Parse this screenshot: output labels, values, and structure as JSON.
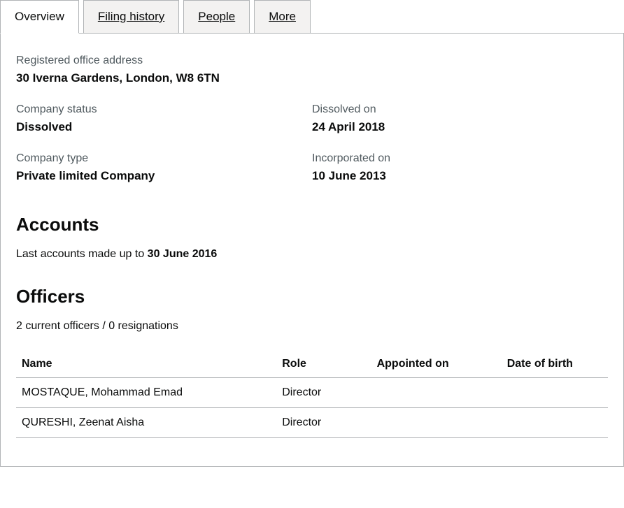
{
  "tabs": {
    "overview": "Overview",
    "filing_history": "Filing history",
    "people": "People",
    "more": "More"
  },
  "overview": {
    "address_label": "Registered office address",
    "address_value": "30 Iverna Gardens, London, W8 6TN",
    "status_label": "Company status",
    "status_value": "Dissolved",
    "dissolved_label": "Dissolved on",
    "dissolved_value": "24 April 2018",
    "type_label": "Company type",
    "type_value": "Private limited Company",
    "incorporated_label": "Incorporated on",
    "incorporated_value": "10 June 2013"
  },
  "accounts": {
    "heading": "Accounts",
    "last_prefix": "Last accounts made up to ",
    "last_date": "30 June 2016"
  },
  "officers": {
    "heading": "Officers",
    "summary": "2 current officers / 0 resignations",
    "columns": {
      "name": "Name",
      "role": "Role",
      "appointed": "Appointed on",
      "dob": "Date of birth"
    },
    "rows": [
      {
        "name": "MOSTAQUE, Mohammad Emad",
        "role": "Director",
        "appointed": "",
        "dob": ""
      },
      {
        "name": "QURESHI, Zeenat Aisha",
        "role": "Director",
        "appointed": "",
        "dob": ""
      }
    ]
  },
  "colors": {
    "border": "#b1b4b6",
    "tab_bg": "#f3f2f1",
    "text_muted": "#505a5f",
    "text": "#0b0c0c"
  }
}
